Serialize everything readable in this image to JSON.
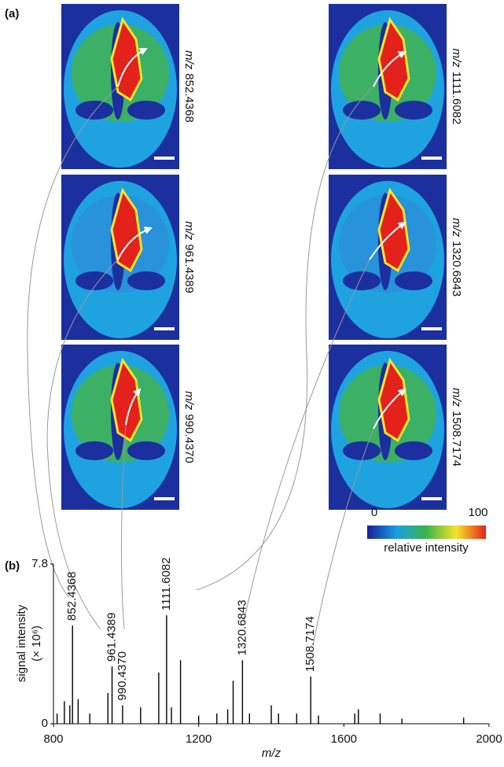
{
  "panels": {
    "a": "(a)",
    "b": "(b)"
  },
  "mz_prefix": "m/z",
  "images": [
    "852.4368",
    "961.4389",
    "990.4370",
    "1111.6082",
    "1320.6843",
    "1508.7174"
  ],
  "colorbar": {
    "min": 0,
    "max": 100,
    "label": "relative intensity"
  },
  "chart_data": {
    "type": "stem",
    "xlabel": "m/z",
    "ylabel": "signal intensity",
    "y_unit": "(× 10⁶)",
    "x": [
      810,
      830,
      845,
      852.4368,
      868,
      900,
      950,
      961.4389,
      990.437,
      1040,
      1090,
      1111.6082,
      1125,
      1150,
      1200,
      1250,
      1280,
      1295,
      1320.6843,
      1340,
      1400,
      1420,
      1470,
      1508.7174,
      1530,
      1630,
      1640,
      1700,
      1760,
      1930
    ],
    "values": [
      0.5,
      1.1,
      0.9,
      4.8,
      1.2,
      0.5,
      1.5,
      2.8,
      0.9,
      0.8,
      2.5,
      5.3,
      0.8,
      3.1,
      0.4,
      0.5,
      0.7,
      2.1,
      3.1,
      0.5,
      0.9,
      0.5,
      0.5,
      2.3,
      0.4,
      0.5,
      0.7,
      0.5,
      0.25,
      0.3
    ],
    "color": "#000000",
    "annotations": [
      852.4368,
      961.4389,
      {
        "value": 990.437,
        "label": "990.4370"
      },
      1111.6082,
      1320.6843,
      1508.7174
    ],
    "annotation_color": "#999999",
    "xlim": [
      800,
      2000
    ],
    "xticks": [
      800,
      1200,
      1600,
      2000
    ],
    "ylim": [
      0,
      7.8
    ],
    "yticks": [
      0,
      7.8
    ]
  }
}
